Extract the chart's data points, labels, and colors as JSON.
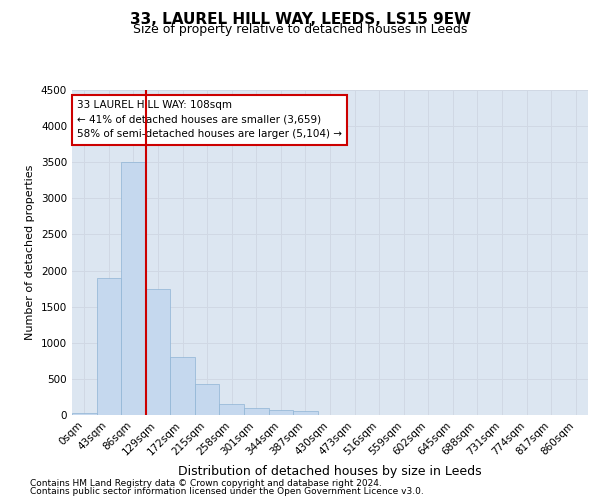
{
  "title1": "33, LAUREL HILL WAY, LEEDS, LS15 9EW",
  "title2": "Size of property relative to detached houses in Leeds",
  "xlabel": "Distribution of detached houses by size in Leeds",
  "ylabel": "Number of detached properties",
  "bar_labels": [
    "0sqm",
    "43sqm",
    "86sqm",
    "129sqm",
    "172sqm",
    "215sqm",
    "258sqm",
    "301sqm",
    "344sqm",
    "387sqm",
    "430sqm",
    "473sqm",
    "516sqm",
    "559sqm",
    "602sqm",
    "645sqm",
    "688sqm",
    "731sqm",
    "774sqm",
    "817sqm",
    "860sqm"
  ],
  "bar_heights": [
    30,
    1900,
    3500,
    1750,
    800,
    430,
    150,
    95,
    70,
    55,
    5,
    0,
    0,
    0,
    0,
    0,
    0,
    0,
    0,
    0,
    0
  ],
  "bar_color": "#c5d8ee",
  "bar_edge_color": "#8fb4d4",
  "ylim": [
    0,
    4500
  ],
  "yticks": [
    0,
    500,
    1000,
    1500,
    2000,
    2500,
    3000,
    3500,
    4000,
    4500
  ],
  "vline_x": 2.51,
  "vline_color": "#cc0000",
  "annotation_text": "33 LAUREL HILL WAY: 108sqm\n← 41% of detached houses are smaller (3,659)\n58% of semi-detached houses are larger (5,104) →",
  "annotation_box_facecolor": "#ffffff",
  "annotation_box_edgecolor": "#cc0000",
  "footnote1": "Contains HM Land Registry data © Crown copyright and database right 2024.",
  "footnote2": "Contains public sector information licensed under the Open Government Licence v3.0.",
  "grid_color": "#d0d8e4",
  "plot_bg_color": "#dce6f1",
  "fig_bg_color": "#ffffff",
  "title1_fontsize": 11,
  "title2_fontsize": 9,
  "ylabel_fontsize": 8,
  "xlabel_fontsize": 9,
  "tick_fontsize": 7.5,
  "annotation_fontsize": 7.5,
  "footnote_fontsize": 6.5
}
